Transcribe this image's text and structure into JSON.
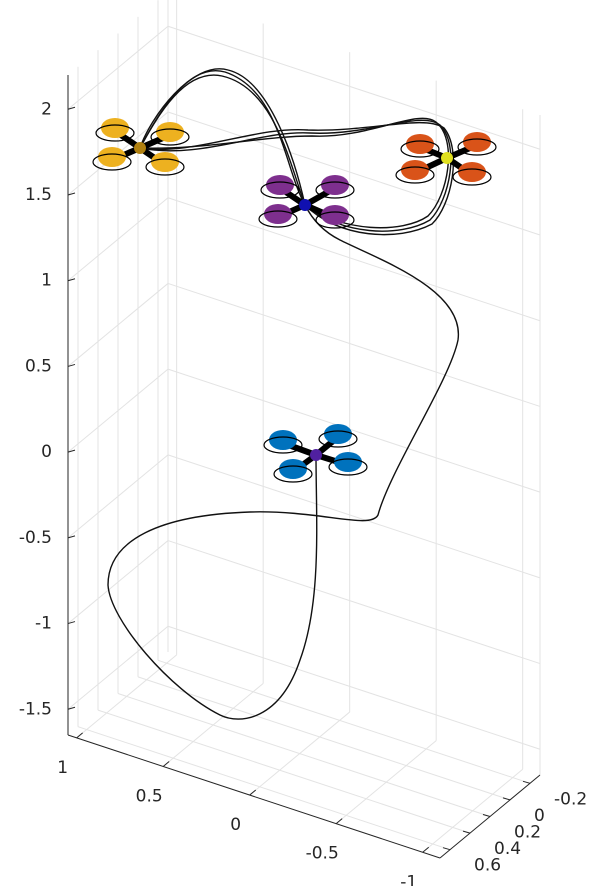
{
  "chart_data": {
    "type": "line3d",
    "xlim": [
      1.05,
      -1.1
    ],
    "ylim": [
      0.7,
      -0.3
    ],
    "zlim": [
      -1.65,
      2.2
    ],
    "xticks": [
      1,
      0.5,
      0,
      -0.5,
      -1
    ],
    "yticks": [
      -0.2,
      0,
      0.2,
      0.4,
      0.6
    ],
    "zticks": [
      -1.5,
      -1,
      -0.5,
      0,
      0.5,
      1,
      1.5,
      2
    ],
    "grid": true
  }
}
